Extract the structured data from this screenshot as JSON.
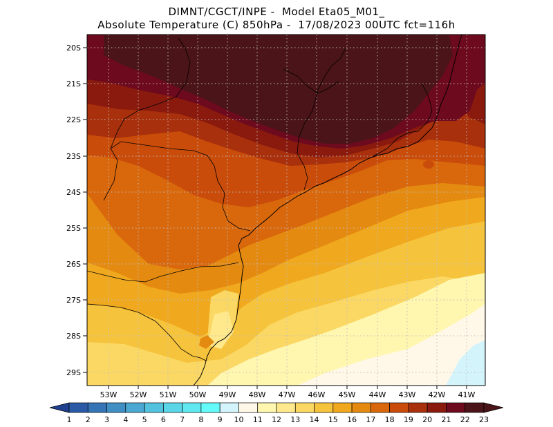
{
  "header": {
    "line1": "DIMNT/CGCT/INPE -  Model Eta05_M01_",
    "line2": "Absolute Temperature (C) 850hPa -  17/08/2023 00UTC fct=116h"
  },
  "axes": {
    "lat_labels": [
      "20S",
      "21S",
      "22S",
      "23S",
      "24S",
      "25S",
      "26S",
      "27S",
      "28S",
      "29S"
    ],
    "lon_labels": [
      "53W",
      "52W",
      "51W",
      "50W",
      "49W",
      "48W",
      "47W",
      "46W",
      "45W",
      "44W",
      "43W",
      "42W",
      "41W"
    ]
  },
  "colorbar": {
    "labels": [
      "1",
      "2",
      "3",
      "4",
      "5",
      "6",
      "7",
      "8",
      "9",
      "10",
      "11",
      "12",
      "13",
      "14",
      "15",
      "16",
      "17",
      "18",
      "19",
      "20",
      "21",
      "22",
      "23"
    ],
    "colors": [
      "#1f3f8f",
      "#2a5aa6",
      "#3574b5",
      "#3f8ec4",
      "#4aa8d2",
      "#52c2de",
      "#5ad6e8",
      "#5fe8f0",
      "#64fafa",
      "#d4f4fc",
      "#fff8e8",
      "#fff6b0",
      "#ffe98c",
      "#fbd864",
      "#f6c33c",
      "#f0a91e",
      "#e58a10",
      "#d9680c",
      "#c94c0a",
      "#a8300c",
      "#8a1a0e",
      "#6e0a1e",
      "#4a1418"
    ]
  }
}
